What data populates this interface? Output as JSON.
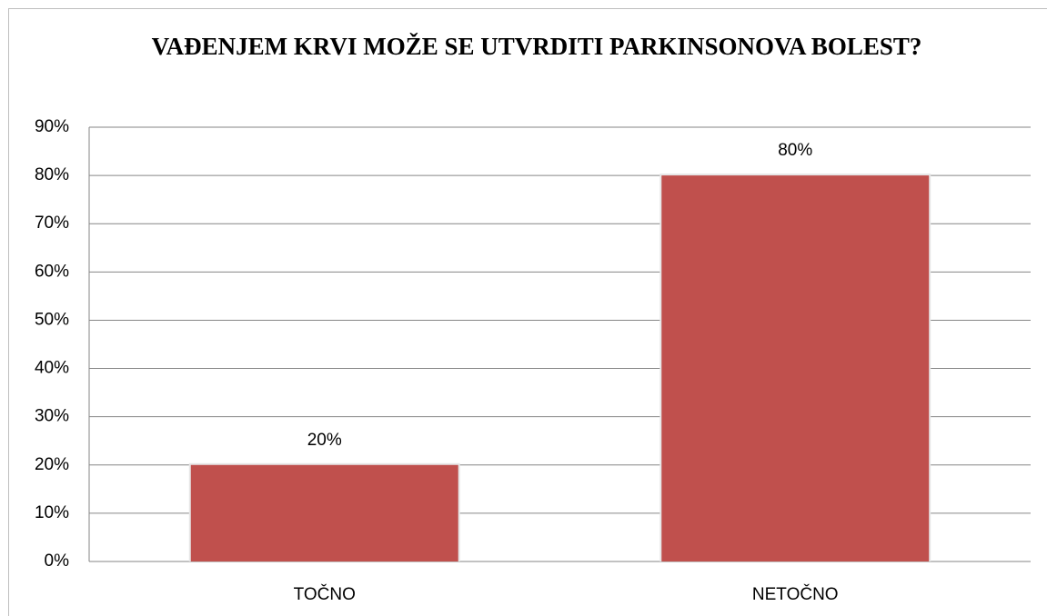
{
  "chart_data": {
    "type": "bar",
    "title": "VAĐENJEM KRVI MOŽE SE UTVRDITI PARKINSONOVA BOLEST?",
    "categories": [
      "TOČNO",
      "NETOČNO"
    ],
    "values": [
      20,
      80
    ],
    "value_labels": [
      "20%",
      "80%"
    ],
    "color": "#c0504d",
    "ylim": [
      0,
      90
    ],
    "yticks": [
      {
        "value": 0,
        "label": "0%"
      },
      {
        "value": 10,
        "label": "10%"
      },
      {
        "value": 20,
        "label": "20%"
      },
      {
        "value": 30,
        "label": "30%"
      },
      {
        "value": 40,
        "label": "40%"
      },
      {
        "value": 50,
        "label": "50%"
      },
      {
        "value": 60,
        "label": "60%"
      },
      {
        "value": 70,
        "label": "70%"
      },
      {
        "value": 80,
        "label": "80%"
      },
      {
        "value": 90,
        "label": "90%"
      }
    ],
    "grid": true
  }
}
